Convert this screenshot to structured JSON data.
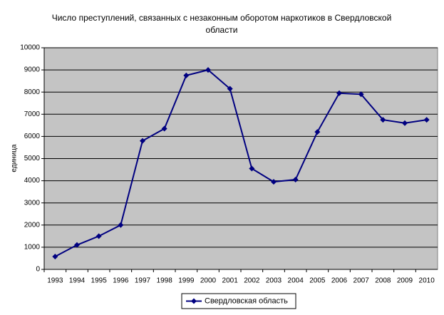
{
  "chart_data": {
    "type": "line",
    "title": [
      "Число преступлений, связанных с незаконным оборотом наркотиков в Свердловской",
      "области"
    ],
    "y_label": "единица",
    "categories": [
      "1993",
      "1994",
      "1995",
      "1996",
      "1997",
      "1998",
      "1999",
      "2000",
      "2001",
      "2002",
      "2003",
      "2004",
      "2005",
      "2006",
      "2007",
      "2008",
      "2009",
      "2010"
    ],
    "series": [
      {
        "name": "Свердловская область",
        "color": "#000080",
        "values": [
          580,
          1100,
          1500,
          2000,
          5800,
          6350,
          8750,
          9000,
          8150,
          4550,
          3950,
          4050,
          6200,
          7950,
          7900,
          6750,
          6600,
          6750
        ]
      }
    ],
    "ylim": [
      0,
      10000
    ],
    "yticks": [
      0,
      1000,
      2000,
      3000,
      4000,
      5000,
      6000,
      7000,
      8000,
      9000,
      10000
    ],
    "grid": true,
    "legend": "bottom"
  }
}
